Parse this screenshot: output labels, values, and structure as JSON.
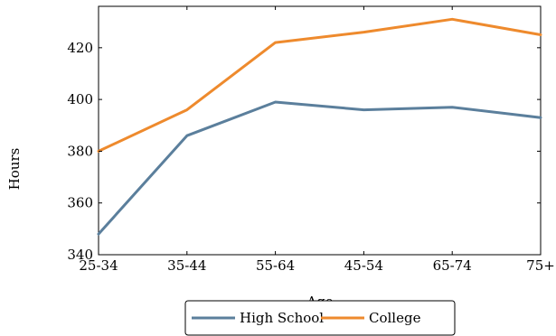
{
  "chart_data": {
    "type": "line",
    "title": "",
    "xlabel": "Age",
    "ylabel": "Hours",
    "categories": [
      "25-34",
      "35-44",
      "55-64",
      "45-54",
      "65-74",
      "75+"
    ],
    "ylim": [
      340,
      436
    ],
    "yticks": [
      340,
      360,
      380,
      400,
      420
    ],
    "grid": false,
    "legend_position": "bottom",
    "series": [
      {
        "name": "High School",
        "color": "#5b7f9c",
        "values": [
          348,
          386,
          399,
          396,
          397,
          393
        ]
      },
      {
        "name": "College",
        "color": "#ee8a2d",
        "values": [
          380,
          396,
          422,
          426,
          431,
          425
        ]
      }
    ]
  }
}
